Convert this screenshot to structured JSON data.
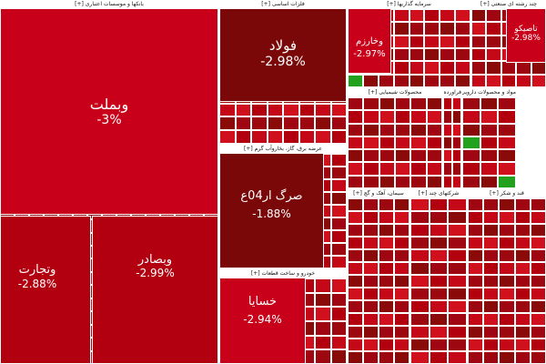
{
  "chart_data": {
    "type": "treemap",
    "color_scale": {
      "down_strong": "#c8001a",
      "down_mid": "#b30010",
      "down_dark": "#7a0808",
      "up": "#22a11f"
    },
    "sectors": [
      {
        "id": "banks",
        "title": "بانکها و موسسات اعتباری [+]"
      },
      {
        "id": "metals",
        "title": "فلزات اساسی [+]"
      },
      {
        "id": "investment",
        "title": "سرمایه گذاریها [+]"
      },
      {
        "id": "multi",
        "title": "چند رشته ای صنعتی [+]"
      },
      {
        "id": "utilities",
        "title": "عرضه برق، گاز، بخاروآب گرم [+]"
      },
      {
        "id": "chemical",
        "title": "محصولات شیمیایی [+]"
      },
      {
        "id": "oil",
        "title": "فراورده های نفتی [+]"
      },
      {
        "id": "pharma",
        "title": "مواد و محصولات دارویی [+]"
      },
      {
        "id": "automotive",
        "title": "خودرو و ساخت قطعات [+]"
      },
      {
        "id": "cement",
        "title": "سیمان، آهک و گچ [+]"
      },
      {
        "id": "holding",
        "title": "شرکتهای چند [+]"
      },
      {
        "id": "sugar",
        "title": "قند و شکر [+]"
      }
    ],
    "tiles": [
      {
        "sector": "banks",
        "symbol": "وبملت",
        "change": -3
      },
      {
        "sector": "banks",
        "symbol": "وتجارت",
        "change": -2.88
      },
      {
        "sector": "banks",
        "symbol": "وبصادر",
        "change": -2.99
      },
      {
        "sector": "metals",
        "symbol": "فولاد",
        "change": -2.98
      },
      {
        "sector": "investment",
        "symbol": "وخارزم",
        "change": -2.97
      },
      {
        "sector": "multi",
        "symbol": "تاصیکو",
        "change": -2.98
      },
      {
        "sector": "utilities",
        "symbol": "صرگ ار04ع",
        "change": -1.88
      },
      {
        "sector": "automotive",
        "symbol": "خسایا",
        "change": -2.94
      }
    ]
  }
}
